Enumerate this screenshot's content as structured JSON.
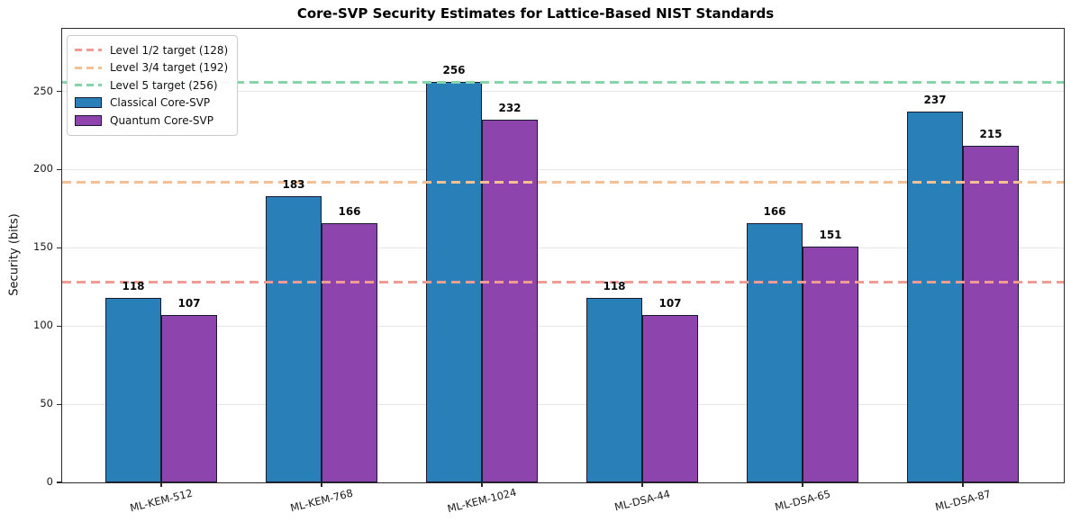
{
  "chart_data": {
    "type": "bar",
    "title": "Core-SVP Security Estimates for Lattice-Based NIST Standards",
    "xlabel": "",
    "ylabel": "Security (bits)",
    "categories": [
      "ML-KEM-512",
      "ML-KEM-768",
      "ML-KEM-1024",
      "ML-DSA-44",
      "ML-DSA-65",
      "ML-DSA-87"
    ],
    "series": [
      {
        "name": "Classical Core-SVP",
        "color": "#2980b9",
        "values": [
          118,
          183,
          256,
          118,
          166,
          237
        ]
      },
      {
        "name": "Quantum Core-SVP",
        "color": "#8e44ad",
        "values": [
          107,
          166,
          232,
          107,
          151,
          215
        ]
      }
    ],
    "target_lines": [
      {
        "label": "Level 1/2 target (128)",
        "value": 128,
        "color": "#f19b92"
      },
      {
        "label": "Level 3/4 target (192)",
        "value": 192,
        "color": "#f5c094"
      },
      {
        "label": "Level 5 target (256)",
        "value": 256,
        "color": "#85d4aa"
      }
    ],
    "yticks": [
      0,
      50,
      100,
      150,
      200,
      250
    ],
    "ylim": [
      0,
      290
    ],
    "grid": true,
    "legend_position": "upper left",
    "bar_edge_color": "#1a1a2e"
  }
}
